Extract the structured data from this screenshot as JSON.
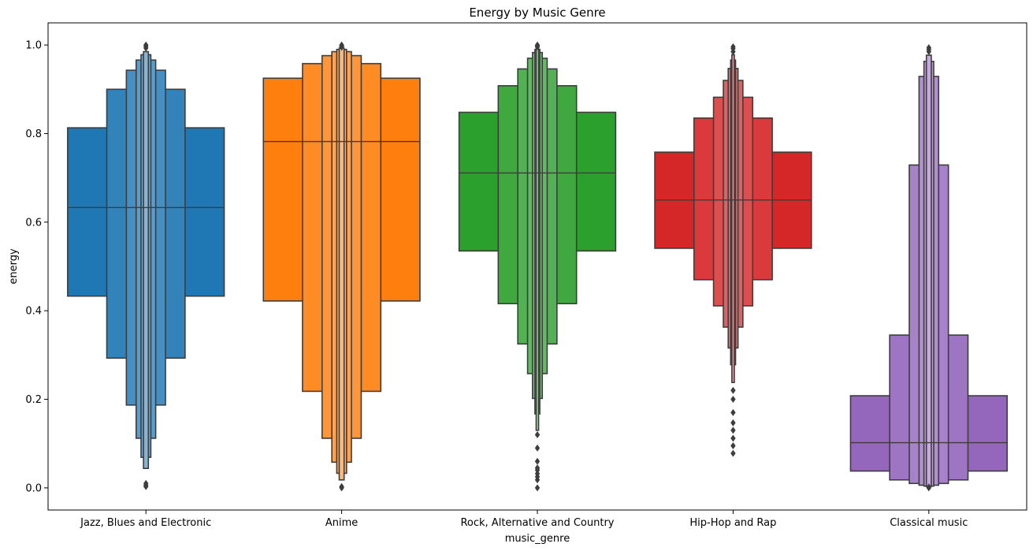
{
  "chart_data": {
    "type": "boxen",
    "title": "Energy by Music Genre",
    "xlabel": "music_genre",
    "ylabel": "energy",
    "ylim": [
      -0.05,
      1.05
    ],
    "yticks": [
      0.0,
      0.2,
      0.4,
      0.6,
      0.8,
      1.0
    ],
    "ytick_labels": [
      "0.0",
      "0.2",
      "0.4",
      "0.6",
      "0.8",
      "1.0"
    ],
    "grid": false,
    "categories": [
      "Jazz, Blues and Electronic",
      "Anime",
      "Rock, Alternative and Country",
      "Hip-Hop and Rap",
      "Classical music"
    ],
    "series": [
      {
        "category": "Jazz, Blues and Electronic",
        "color": "#1f77b4",
        "median": 0.633,
        "boxes": [
          [
            0.433,
            0.813
          ],
          [
            0.293,
            0.9
          ],
          [
            0.187,
            0.943
          ],
          [
            0.112,
            0.966
          ],
          [
            0.069,
            0.978
          ],
          [
            0.044,
            0.985
          ]
        ],
        "outliers": [
          0.003,
          0.006,
          0.01,
          0.993,
          0.997,
          1.0
        ]
      },
      {
        "category": "Anime",
        "color": "#ff7f0e",
        "median": 0.782,
        "boxes": [
          [
            0.422,
            0.925
          ],
          [
            0.218,
            0.958
          ],
          [
            0.112,
            0.976
          ],
          [
            0.058,
            0.985
          ],
          [
            0.033,
            0.99
          ],
          [
            0.018,
            0.993
          ]
        ],
        "outliers": [
          0.0,
          0.003,
          0.995,
          0.998,
          1.0
        ]
      },
      {
        "category": "Rock, Alternative and Country",
        "color": "#2ca02c",
        "median": 0.711,
        "boxes": [
          [
            0.535,
            0.848
          ],
          [
            0.416,
            0.908
          ],
          [
            0.325,
            0.946
          ],
          [
            0.258,
            0.97
          ],
          [
            0.202,
            0.983
          ],
          [
            0.167,
            0.99
          ],
          [
            0.13,
            0.994
          ]
        ],
        "outliers": [
          0.0,
          0.018,
          0.025,
          0.032,
          0.04,
          0.045,
          0.06,
          0.09,
          0.12,
          0.996,
          0.998,
          1.0
        ]
      },
      {
        "category": "Hip-Hop and Rap",
        "color": "#d62728",
        "median": 0.65,
        "boxes": [
          [
            0.541,
            0.758
          ],
          [
            0.47,
            0.835
          ],
          [
            0.411,
            0.882
          ],
          [
            0.363,
            0.92
          ],
          [
            0.316,
            0.947
          ],
          [
            0.278,
            0.966
          ],
          [
            0.238,
            0.978
          ]
        ],
        "outliers": [
          0.078,
          0.095,
          0.112,
          0.13,
          0.147,
          0.17,
          0.2,
          0.22,
          0.985,
          0.992,
          0.996
        ]
      },
      {
        "category": "Classical music",
        "color": "#9467bd",
        "median": 0.102,
        "boxes": [
          [
            0.038,
            0.208
          ],
          [
            0.018,
            0.345
          ],
          [
            0.01,
            0.729
          ],
          [
            0.006,
            0.929
          ],
          [
            0.004,
            0.963
          ],
          [
            0.003,
            0.977
          ]
        ],
        "outliers": [
          0.0,
          0.002,
          0.985,
          0.99,
          0.994
        ]
      }
    ]
  }
}
